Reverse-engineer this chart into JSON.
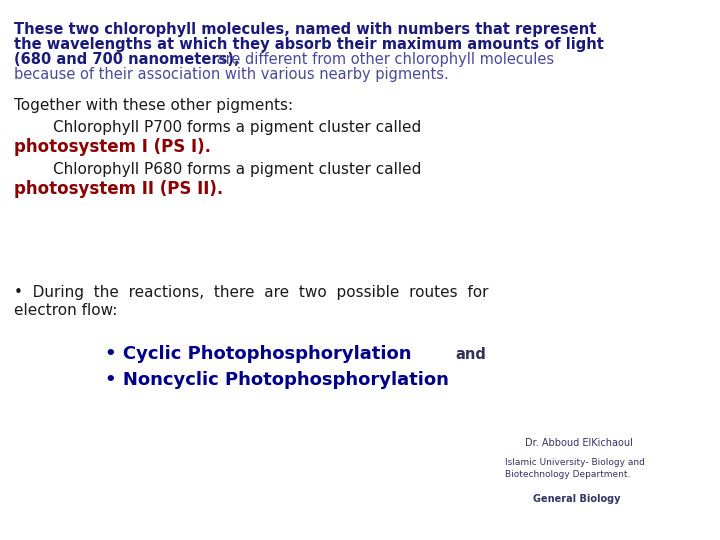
{
  "background_color": "#ffffff",
  "bold_color": "#1a1a7a",
  "normal_color": "#4a4a9a",
  "black_color": "#1a1a1a",
  "red_color": "#8b0000",
  "blue_bold_color": "#00008b",
  "and_color": "#333355",
  "footer_color": "#333366",
  "p1_bold_line1": "These two chlorophyll molecules, named with numbers that represent",
  "p1_bold_line2": "the wavelengths at which they absorb their maximum amounts of light",
  "p1_bold_line3": "(680 and 700 nanometers),",
  "p1_norm_line3_suffix": " are different from other chlorophyll molecules",
  "p1_norm_line4": "because of their association with various nearby pigments.",
  "p2_line1": "Together with these other pigments:",
  "p2_line2": "        Chlorophyll P700 forms a pigment cluster called",
  "p2_line3_red": "photosystem I (PS I).",
  "p2_line4": "        Chlorophyll P680 forms a pigment cluster called",
  "p2_line5_red": "photosystem II (PS II).",
  "p3_line1": "•  During  the  reactions,  there  are  two  possible  routes  for",
  "p3_line2": "electron flow:",
  "p3_cyclic": "• Cyclic Photophosphorylation",
  "p3_and": "and",
  "p3_noncyclic": "• Noncyclic Photophosphorylation",
  "footer1": "Dr. Abboud ElKichaoul",
  "footer2": "Islamic University- Biology and\nBiotechnology Department.",
  "footer3": "General Biology",
  "fs_p1": 10.5,
  "fs_p2": 11.0,
  "fs_p3": 11.0,
  "fs_p3_blue": 13.0,
  "fs_footer": 7.0
}
